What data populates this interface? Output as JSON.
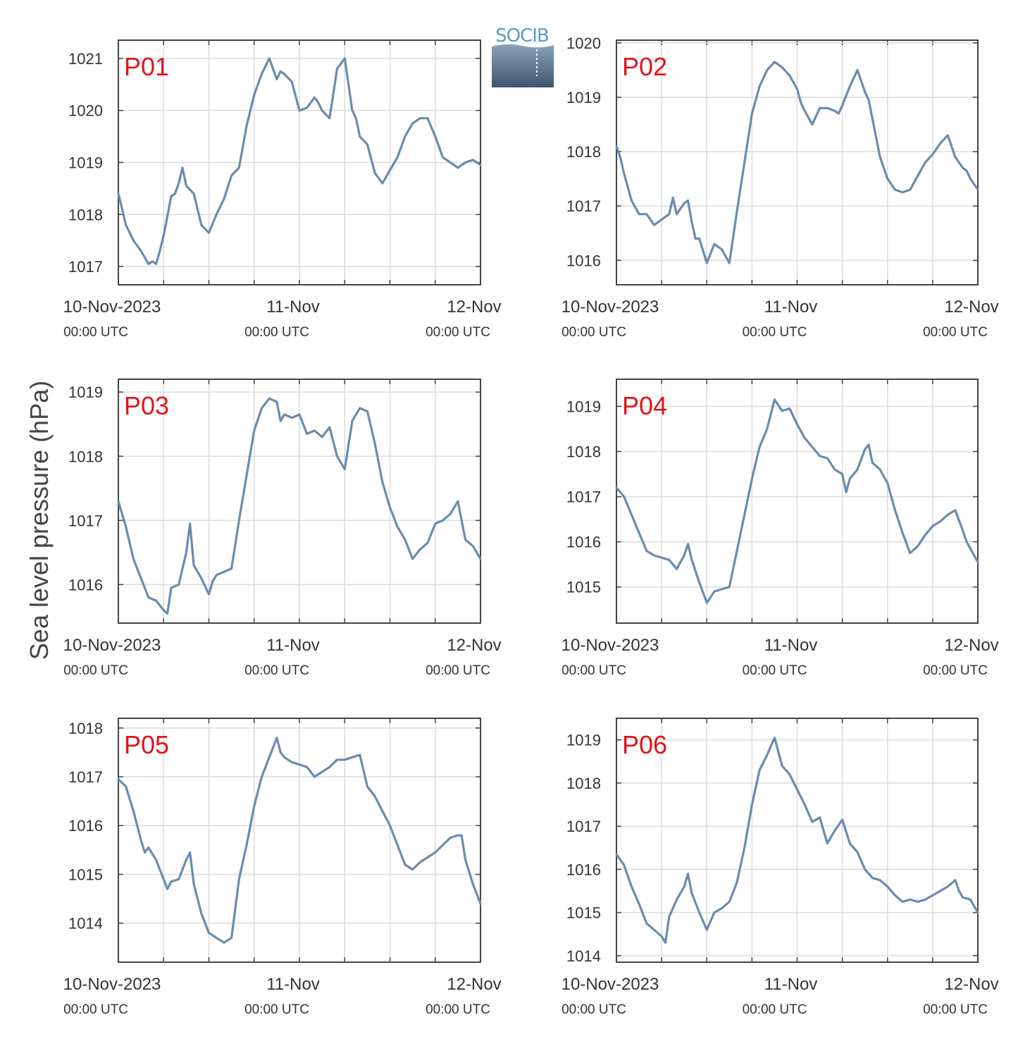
{
  "figure": {
    "ylabel": "Sea level pressure (hPa)",
    "logo_text": "SOCIB",
    "colors": {
      "series": "#6a8bb0",
      "panel_label": "#e3141c",
      "grid": "#dcdcdc",
      "axis": "#444444"
    },
    "xticks": [
      {
        "main": "10-Nov-2023",
        "sub": "00:00 UTC"
      },
      {
        "main": "11-Nov",
        "sub": "00:00 UTC"
      },
      {
        "main": "12-Nov",
        "sub": "00:00 UTC"
      }
    ]
  },
  "chart_data": [
    {
      "type": "line",
      "label": "P01",
      "xlim": [
        0,
        48
      ],
      "ylim": [
        1016.65,
        1021.35
      ],
      "yticks": [
        1017,
        1018,
        1019,
        1020,
        1021
      ],
      "series": [
        {
          "x": [
            0,
            0.5,
            1,
            2,
            3,
            4,
            4.5,
            5,
            5.5,
            6,
            7,
            7.5,
            8,
            8.5,
            9,
            10,
            11,
            12,
            13,
            14,
            15,
            16,
            17,
            18,
            19,
            20,
            21,
            21.5,
            22,
            23,
            24,
            25,
            26,
            26.5,
            27,
            28,
            29,
            30,
            31,
            31.5,
            32,
            33,
            34,
            35,
            36,
            37,
            38,
            39,
            40,
            41,
            42,
            43,
            44,
            45,
            45.5,
            46,
            47,
            48
          ],
          "y": [
            1018.4,
            1018.1,
            1017.8,
            1017.5,
            1017.3,
            1017.05,
            1017.1,
            1017.05,
            1017.3,
            1017.6,
            1018.35,
            1018.4,
            1018.6,
            1018.9,
            1018.55,
            1018.4,
            1017.8,
            1017.65,
            1018.0,
            1018.3,
            1018.75,
            1018.9,
            1019.7,
            1020.3,
            1020.7,
            1021.0,
            1020.6,
            1020.75,
            1020.7,
            1020.55,
            1020.0,
            1020.05,
            1020.25,
            1020.15,
            1020.0,
            1019.85,
            1020.8,
            1021.0,
            1020.0,
            1019.85,
            1019.5,
            1019.35,
            1018.8,
            1018.6,
            1018.85,
            1019.1,
            1019.5,
            1019.75,
            1019.85,
            1019.85,
            1019.5,
            1019.1,
            1019.0,
            1018.9,
            1018.95,
            1019.0,
            1019.05,
            1018.95
          ]
        }
      ]
    },
    {
      "type": "line",
      "label": "P02",
      "xlim": [
        0,
        48
      ],
      "ylim": [
        1015.55,
        1020.05
      ],
      "yticks": [
        1016,
        1017,
        1018,
        1019,
        1020
      ],
      "series": [
        {
          "x": [
            0,
            0.5,
            1,
            2,
            3,
            4,
            5,
            6,
            7,
            7.5,
            8,
            9,
            9.5,
            10,
            10.5,
            11,
            12,
            13,
            14,
            15,
            16,
            17,
            18,
            19,
            20,
            21,
            22,
            23,
            24,
            24.5,
            25,
            26,
            27,
            28,
            29,
            29.5,
            30,
            31,
            32,
            33,
            33.5,
            34,
            35,
            36,
            37,
            38,
            39,
            40,
            41,
            42,
            43,
            44,
            45,
            46,
            46.5,
            47,
            47.5,
            48
          ],
          "y": [
            1018.1,
            1017.9,
            1017.6,
            1017.1,
            1016.85,
            1016.85,
            1016.65,
            1016.75,
            1016.85,
            1017.15,
            1016.85,
            1017.05,
            1017.1,
            1016.7,
            1016.4,
            1016.4,
            1015.95,
            1016.3,
            1016.2,
            1015.95,
            1016.9,
            1017.8,
            1018.7,
            1019.2,
            1019.5,
            1019.65,
            1019.55,
            1019.4,
            1019.15,
            1018.9,
            1018.75,
            1018.5,
            1018.8,
            1018.8,
            1018.75,
            1018.7,
            1018.85,
            1019.2,
            1019.5,
            1019.1,
            1018.95,
            1018.6,
            1017.9,
            1017.5,
            1017.3,
            1017.25,
            1017.3,
            1017.55,
            1017.8,
            1017.95,
            1018.15,
            1018.3,
            1017.9,
            1017.7,
            1017.65,
            1017.5,
            1017.4,
            1017.3
          ]
        }
      ]
    },
    {
      "type": "line",
      "label": "P03",
      "xlim": [
        0,
        48
      ],
      "ylim": [
        1015.4,
        1019.2
      ],
      "yticks": [
        1016,
        1017,
        1018,
        1019
      ],
      "series": [
        {
          "x": [
            0,
            1,
            2,
            3,
            4,
            5,
            6,
            6.5,
            7,
            8,
            9,
            9.5,
            10,
            11,
            12,
            12.5,
            13,
            14,
            15,
            16,
            17,
            18,
            19,
            20,
            21,
            21.5,
            22,
            23,
            24,
            25,
            26,
            27,
            28,
            29,
            30,
            31,
            32,
            33,
            34,
            35,
            36,
            37,
            38,
            39,
            40,
            41,
            42,
            43,
            44,
            45,
            46,
            47,
            48
          ],
          "y": [
            1017.3,
            1016.9,
            1016.4,
            1016.1,
            1015.8,
            1015.75,
            1015.6,
            1015.55,
            1015.95,
            1016.0,
            1016.5,
            1016.95,
            1016.3,
            1016.1,
            1015.85,
            1016.05,
            1016.15,
            1016.2,
            1016.25,
            1017.0,
            1017.7,
            1018.4,
            1018.75,
            1018.9,
            1018.85,
            1018.55,
            1018.65,
            1018.6,
            1018.65,
            1018.35,
            1018.4,
            1018.3,
            1018.45,
            1018.0,
            1017.8,
            1018.55,
            1018.75,
            1018.7,
            1018.2,
            1017.6,
            1017.2,
            1016.9,
            1016.7,
            1016.4,
            1016.55,
            1016.65,
            1016.95,
            1017.0,
            1017.1,
            1017.3,
            1016.7,
            1016.6,
            1016.4
          ]
        }
      ]
    },
    {
      "type": "line",
      "label": "P04",
      "xlim": [
        0,
        48
      ],
      "ylim": [
        1014.2,
        1019.6
      ],
      "yticks": [
        1015,
        1016,
        1017,
        1018,
        1019
      ],
      "series": [
        {
          "x": [
            0,
            1,
            2,
            3,
            4,
            5,
            6,
            7,
            8,
            9,
            9.5,
            10,
            11,
            12,
            13,
            14,
            15,
            16,
            17,
            18,
            19,
            20,
            21,
            22,
            23,
            24,
            25,
            26,
            27,
            28,
            29,
            30,
            30.5,
            31,
            32,
            33,
            33.5,
            34,
            35,
            36,
            37,
            38,
            39,
            40,
            41,
            42,
            43,
            44,
            45,
            46,
            46.5,
            47,
            48
          ],
          "y": [
            1017.2,
            1017.0,
            1016.6,
            1016.2,
            1015.8,
            1015.7,
            1015.65,
            1015.6,
            1015.4,
            1015.7,
            1015.95,
            1015.6,
            1015.1,
            1014.65,
            1014.9,
            1014.95,
            1015.0,
            1015.8,
            1016.6,
            1017.4,
            1018.1,
            1018.5,
            1019.15,
            1018.9,
            1018.95,
            1018.6,
            1018.3,
            1018.1,
            1017.9,
            1017.85,
            1017.6,
            1017.5,
            1017.1,
            1017.4,
            1017.6,
            1018.05,
            1018.15,
            1017.75,
            1017.6,
            1017.3,
            1016.7,
            1016.2,
            1015.75,
            1015.9,
            1016.15,
            1016.35,
            1016.45,
            1016.6,
            1016.7,
            1016.25,
            1016.0,
            1015.85,
            1015.55
          ]
        }
      ]
    },
    {
      "type": "line",
      "label": "P05",
      "xlim": [
        0,
        48
      ],
      "ylim": [
        1013.2,
        1018.2
      ],
      "yticks": [
        1014,
        1015,
        1016,
        1017,
        1018
      ],
      "series": [
        {
          "x": [
            0,
            1,
            2,
            3,
            3.5,
            4,
            5,
            6,
            6.5,
            7,
            8,
            9,
            9.5,
            10,
            11,
            12,
            13,
            14,
            15,
            16,
            17,
            18,
            19,
            20,
            21,
            21.5,
            22,
            23,
            24,
            25,
            26,
            27,
            28,
            29,
            30,
            31,
            32,
            33,
            34,
            35,
            36,
            37,
            38,
            39,
            40,
            41,
            42,
            43,
            44,
            45,
            45.5,
            46,
            47,
            48
          ],
          "y": [
            1016.95,
            1016.8,
            1016.3,
            1015.7,
            1015.45,
            1015.55,
            1015.3,
            1014.9,
            1014.7,
            1014.85,
            1014.9,
            1015.3,
            1015.45,
            1014.8,
            1014.2,
            1013.8,
            1013.7,
            1013.6,
            1013.7,
            1014.9,
            1015.6,
            1016.4,
            1017.0,
            1017.4,
            1017.8,
            1017.5,
            1017.4,
            1017.3,
            1017.25,
            1017.2,
            1017.0,
            1017.1,
            1017.2,
            1017.35,
            1017.35,
            1017.4,
            1017.45,
            1016.8,
            1016.6,
            1016.3,
            1016.0,
            1015.6,
            1015.2,
            1015.1,
            1015.25,
            1015.35,
            1015.45,
            1015.6,
            1015.75,
            1015.8,
            1015.8,
            1015.3,
            1014.8,
            1014.4
          ]
        }
      ]
    },
    {
      "type": "line",
      "label": "P06",
      "xlim": [
        0,
        48
      ],
      "ylim": [
        1013.85,
        1019.5
      ],
      "yticks": [
        1014,
        1015,
        1016,
        1017,
        1018,
        1019
      ],
      "series": [
        {
          "x": [
            0,
            1,
            2,
            3,
            4,
            5,
            6,
            6.5,
            7,
            8,
            9,
            9.5,
            10,
            11,
            12,
            13,
            14,
            15,
            16,
            17,
            18,
            19,
            20,
            21,
            22,
            23,
            24,
            25,
            26,
            27,
            28,
            29,
            30,
            31,
            32,
            33,
            34,
            35,
            36,
            37,
            38,
            39,
            40,
            41,
            42,
            43,
            44,
            45,
            45.5,
            46,
            47,
            48
          ],
          "y": [
            1016.35,
            1016.1,
            1015.6,
            1015.2,
            1014.75,
            1014.6,
            1014.45,
            1014.3,
            1014.9,
            1015.3,
            1015.6,
            1015.9,
            1015.45,
            1015.0,
            1014.6,
            1015.0,
            1015.1,
            1015.25,
            1015.7,
            1016.5,
            1017.5,
            1018.3,
            1018.65,
            1019.05,
            1018.4,
            1018.2,
            1017.85,
            1017.5,
            1017.1,
            1017.2,
            1016.6,
            1016.9,
            1017.15,
            1016.6,
            1016.4,
            1016.0,
            1015.8,
            1015.75,
            1015.6,
            1015.4,
            1015.25,
            1015.3,
            1015.25,
            1015.3,
            1015.4,
            1015.5,
            1015.6,
            1015.75,
            1015.5,
            1015.35,
            1015.3,
            1015.0
          ]
        }
      ]
    }
  ]
}
